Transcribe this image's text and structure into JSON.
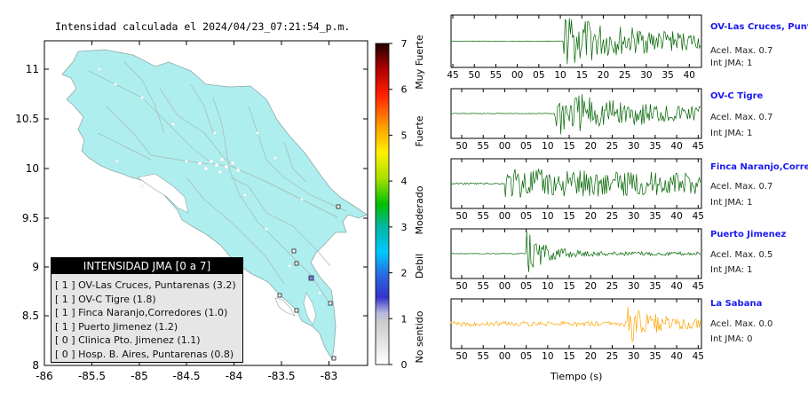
{
  "map": {
    "title": "Intensidad calculada el 2024/04/23_07:21:54_p.m.",
    "x_ticks": [
      "-86",
      "-85.5",
      "-85",
      "-84.5",
      "-84",
      "-83.5",
      "-83"
    ],
    "y_ticks": [
      "11",
      "10.5",
      "10",
      "9.5",
      "9",
      "8.5",
      "8"
    ],
    "colorbar_ticks": [
      "7",
      "6",
      "5",
      "4",
      "3",
      "2",
      "1",
      "0"
    ],
    "colorbar_labels": [
      "Muy Fuerte",
      "Fuerte",
      "Moderado",
      "Debil",
      "No sentido"
    ],
    "colors": {
      "land": "#aeeeee",
      "sea": "#ffffff",
      "roads": "#a8b6b6",
      "border": "#9aa6a6"
    }
  },
  "legend": {
    "title": "INTENSIDAD JMA [0 a 7]",
    "rows": [
      "[ 1 ] OV-Las Cruces, Puntarenas (3.2)",
      "[ 1 ] OV-C Tigre (1.8)",
      "[ 1 ] Finca Naranjo,Corredores (1.0)",
      "[ 1 ] Puerto Jimenez (1.2)",
      "[ 0 ] Clinica Pto. Jimenez (1.1)",
      "[ 0 ] Hosp. B. Aires, Puntarenas (0.8)"
    ]
  },
  "chart_data": {
    "type": "line",
    "xlabel": "Tiempo (s)",
    "series": [
      {
        "name": "OV-Las Cruces, Puntarenas",
        "accel_label": "Acel. Max. 0.7",
        "jma_label": "Int JMA: 1",
        "color": "#006400",
        "onset": 12,
        "ticks": [
          "45",
          "50",
          "55",
          "00",
          "05",
          "10",
          "15",
          "20",
          "25",
          "30",
          "35",
          "40"
        ]
      },
      {
        "name": "OV-C Tigre",
        "accel_label": "Acel. Max. 0.7",
        "jma_label": "Int JMA: 1",
        "color": "#006400",
        "onset": 15,
        "ticks": [
          "50",
          "55",
          "00",
          "05",
          "10",
          "15",
          "20",
          "25",
          "30",
          "35",
          "40",
          "45"
        ]
      },
      {
        "name": "Finca Naranjo,Corredores",
        "accel_label": "Acel. Max. 0.7",
        "jma_label": "Int JMA: 1",
        "color": "#006400",
        "onset": 3,
        "ticks": [
          "50",
          "55",
          "00",
          "05",
          "10",
          "15",
          "20",
          "25",
          "30",
          "35",
          "40",
          "45"
        ]
      },
      {
        "name": "Puerto Jimenez",
        "accel_label": "Acel. Max. 0.5",
        "jma_label": "Int JMA: 1",
        "color": "#006400",
        "onset": 8,
        "ticks": [
          "50",
          "55",
          "00",
          "05",
          "10",
          "15",
          "20",
          "25",
          "30",
          "35",
          "40",
          "45"
        ]
      },
      {
        "name": "La Sabana",
        "accel_label": "Acel. Max. 0.0",
        "jma_label": "Int JMA: 0",
        "color": "#ffa500",
        "onset": 32,
        "ticks": [
          "50",
          "55",
          "00",
          "05",
          "10",
          "15",
          "20",
          "25",
          "30",
          "35",
          "40",
          "45"
        ]
      }
    ]
  }
}
